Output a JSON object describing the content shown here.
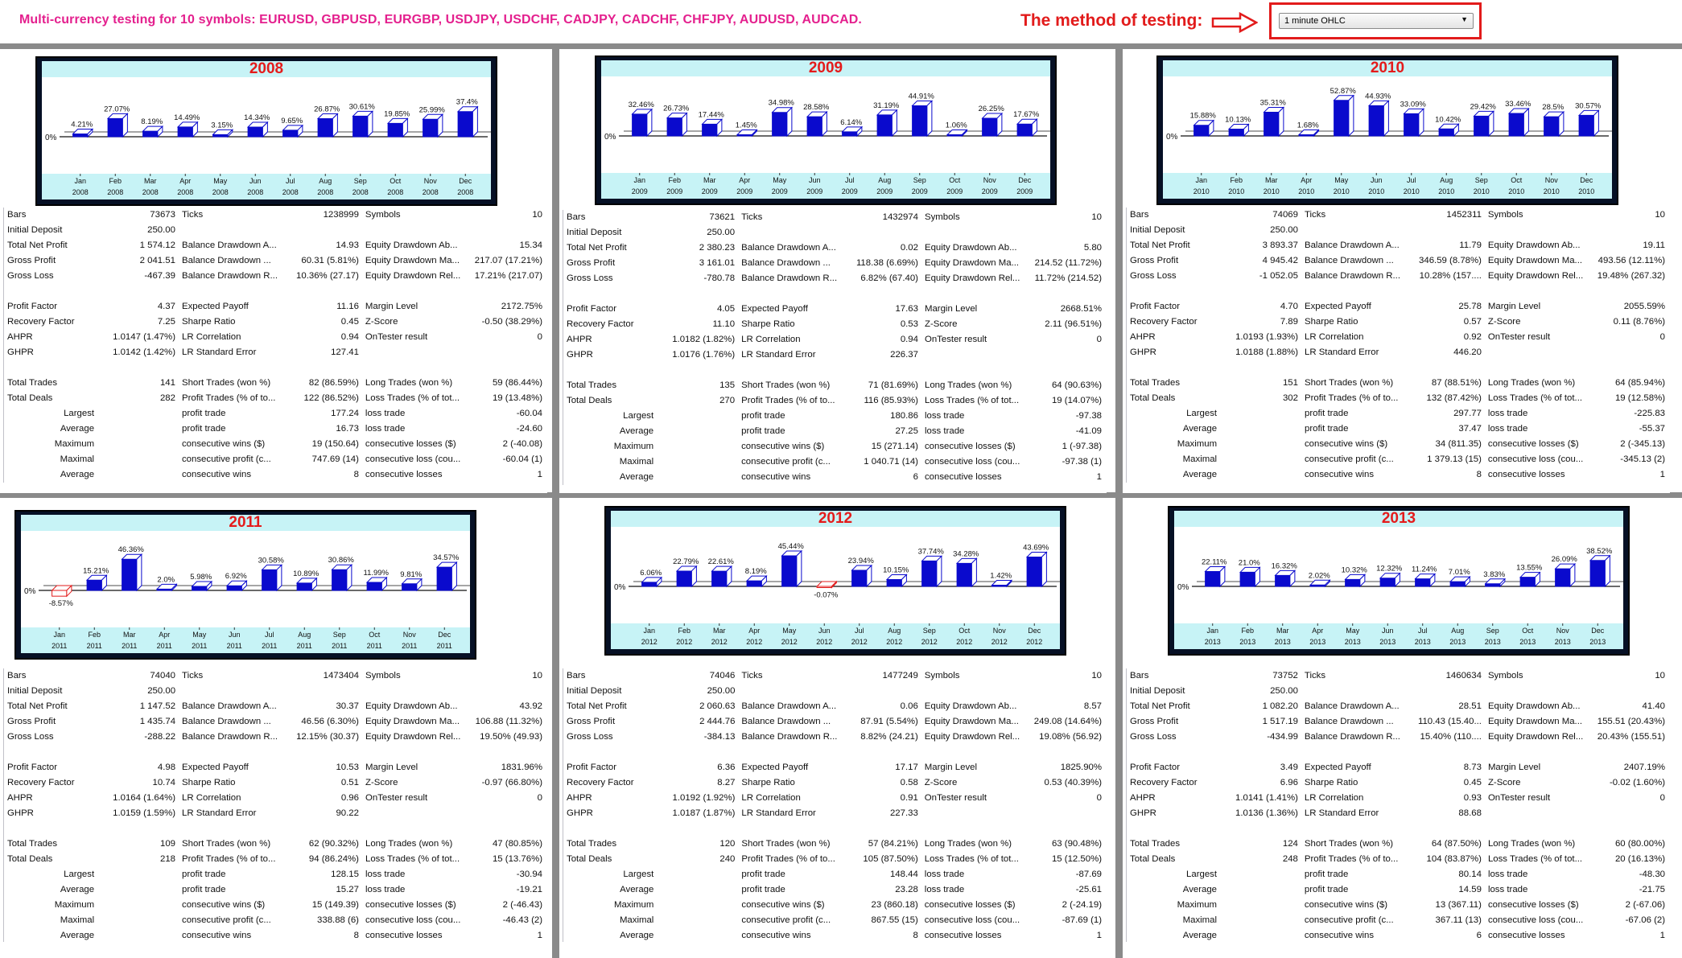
{
  "header": {
    "title": "Multi-currency testing for 10 symbols:  EURUSD, GBPUSD, EURGBP, USDJPY, USDCHF, CADJPY, CADCHF, CHFJPY, AUDUSD, AUDCAD.",
    "method_label": "The method of testing:",
    "method_value": "1 minute OHLC"
  },
  "colors": {
    "title": "#e4208e",
    "method": "#e21b1b",
    "bar_positive": "#0a0acd",
    "bar_negative": "#e21b1b",
    "chart_band": "#c7f3f6"
  },
  "months": [
    "Jan",
    "Feb",
    "Mar",
    "Apr",
    "May",
    "Jun",
    "Jul",
    "Aug",
    "Sep",
    "Oct",
    "Nov",
    "Dec"
  ],
  "zero_label": "0%",
  "row_labels": {
    "bars": "Bars",
    "ticks": "Ticks",
    "symbols": "Symbols",
    "initial_deposit": "Initial Deposit",
    "total_net_profit": "Total Net Profit",
    "balance_dd_abs": "Balance Drawdown A...",
    "equity_dd_abs": "Equity Drawdown Ab...",
    "gross_profit": "Gross Profit",
    "balance_dd_max": "Balance Drawdown ...",
    "equity_dd_max": "Equity Drawdown Ma...",
    "gross_loss": "Gross Loss",
    "balance_dd_rel": "Balance Drawdown R...",
    "equity_dd_rel": "Equity Drawdown Rel...",
    "profit_factor": "Profit Factor",
    "expected_payoff": "Expected Payoff",
    "margin_level": "Margin Level",
    "recovery_factor": "Recovery Factor",
    "sharpe_ratio": "Sharpe Ratio",
    "z_score": "Z-Score",
    "ahpr": "AHPR",
    "lr_correlation": "LR Correlation",
    "ontester": "OnTester result",
    "ghpr": "GHPR",
    "lr_std_error": "LR Standard Error",
    "total_trades": "Total Trades",
    "short_trades": "Short Trades (won %)",
    "long_trades": "Long Trades (won %)",
    "total_deals": "Total Deals",
    "profit_trades": "Profit Trades (% of to...",
    "loss_trades": "Loss Trades (% of tot...",
    "largest": "Largest",
    "average": "Average",
    "maximum": "Maximum",
    "maximal": "Maximal",
    "profit_trade": "profit trade",
    "loss_trade": "loss trade",
    "consecutive_wins_usd": "consecutive wins ($)",
    "consecutive_losses_usd": "consecutive losses ($)",
    "consecutive_profit": "consecutive profit (c...",
    "consecutive_loss": "consecutive loss (cou...",
    "consecutive_wins": "consecutive wins",
    "consecutive_losses": "consecutive losses"
  },
  "panels": [
    {
      "year": "2008",
      "monthly_labels": [
        "4.21%",
        "27.07%",
        "8.19%",
        "14.49%",
        "3.15%",
        "14.34%",
        "9.65%",
        "26.87%",
        "30.61%",
        "19.85%",
        "25.99%",
        "37.4%"
      ],
      "monthly_values": [
        4.21,
        27.07,
        8.19,
        14.49,
        3.15,
        14.34,
        9.65,
        26.87,
        30.61,
        19.85,
        25.99,
        37.4
      ],
      "stats": {
        "bars": "73673",
        "ticks": "1238999",
        "symbols": "10",
        "initial_deposit": "250.00",
        "total_net_profit": "1 574.12",
        "balance_dd_abs": "14.93",
        "equity_dd_abs": "15.34",
        "gross_profit": "2 041.51",
        "balance_dd_max": "60.31 (5.81%)",
        "equity_dd_max": "217.07 (17.21%)",
        "gross_loss": "-467.39",
        "balance_dd_rel": "10.36% (27.17)",
        "equity_dd_rel": "17.21% (217.07)",
        "profit_factor": "4.37",
        "expected_payoff": "11.16",
        "margin_level": "2172.75%",
        "recovery_factor": "7.25",
        "sharpe_ratio": "0.45",
        "z_score": "-0.50 (38.29%)",
        "ahpr": "1.0147 (1.47%)",
        "lr_correlation": "0.94",
        "ontester": "0",
        "ghpr": "1.0142 (1.42%)",
        "lr_std_error": "127.41",
        "total_trades": "141",
        "short_trades": "82 (86.59%)",
        "long_trades": "59 (86.44%)",
        "total_deals": "282",
        "profit_trades": "122 (86.52%)",
        "loss_trades": "19 (13.48%)",
        "largest_profit": "177.24",
        "largest_loss": "-60.04",
        "average_profit": "16.73",
        "average_loss": "-24.60",
        "max_cons_wins_usd": "19 (150.64)",
        "max_cons_losses_usd": "2 (-40.08)",
        "maximal_cons_profit": "747.69 (14)",
        "maximal_cons_loss": "-60.04 (1)",
        "avg_cons_wins": "8",
        "avg_cons_losses": "1"
      }
    },
    {
      "year": "2009",
      "monthly_labels": [
        "32.46%",
        "26.73%",
        "17.44%",
        "1.45%",
        "34.98%",
        "28.58%",
        "6.14%",
        "31.19%",
        "44.91%",
        "1.06%",
        "26.25%",
        "17.67%"
      ],
      "monthly_values": [
        32.46,
        26.73,
        17.44,
        1.45,
        34.98,
        28.58,
        6.14,
        31.19,
        44.91,
        1.06,
        26.25,
        17.67
      ],
      "stats": {
        "bars": "73621",
        "ticks": "1432974",
        "symbols": "10",
        "initial_deposit": "250.00",
        "total_net_profit": "2 380.23",
        "balance_dd_abs": "0.02",
        "equity_dd_abs": "5.80",
        "gross_profit": "3 161.01",
        "balance_dd_max": "118.38 (6.69%)",
        "equity_dd_max": "214.52 (11.72%)",
        "gross_loss": "-780.78",
        "balance_dd_rel": "6.82% (67.40)",
        "equity_dd_rel": "11.72% (214.52)",
        "profit_factor": "4.05",
        "expected_payoff": "17.63",
        "margin_level": "2668.51%",
        "recovery_factor": "11.10",
        "sharpe_ratio": "0.53",
        "z_score": "2.11 (96.51%)",
        "ahpr": "1.0182 (1.82%)",
        "lr_correlation": "0.94",
        "ontester": "0",
        "ghpr": "1.0176 (1.76%)",
        "lr_std_error": "226.37",
        "total_trades": "135",
        "short_trades": "71 (81.69%)",
        "long_trades": "64 (90.63%)",
        "total_deals": "270",
        "profit_trades": "116 (85.93%)",
        "loss_trades": "19 (14.07%)",
        "largest_profit": "180.86",
        "largest_loss": "-97.38",
        "average_profit": "27.25",
        "average_loss": "-41.09",
        "max_cons_wins_usd": "15 (271.14)",
        "max_cons_losses_usd": "1 (-97.38)",
        "maximal_cons_profit": "1 040.71 (14)",
        "maximal_cons_loss": "-97.38 (1)",
        "avg_cons_wins": "6",
        "avg_cons_losses": "1"
      }
    },
    {
      "year": "2010",
      "monthly_labels": [
        "15.88%",
        "10.13%",
        "35.31%",
        "1.68%",
        "52.87%",
        "44.93%",
        "33.09%",
        "10.42%",
        "29.42%",
        "33.46%",
        "28.5%",
        "30.57%"
      ],
      "monthly_values": [
        15.88,
        10.13,
        35.31,
        1.68,
        52.87,
        44.93,
        33.09,
        10.42,
        29.42,
        33.46,
        28.5,
        30.57
      ],
      "stats": {
        "bars": "74069",
        "ticks": "1452311",
        "symbols": "10",
        "initial_deposit": "250.00",
        "total_net_profit": "3 893.37",
        "balance_dd_abs": "11.79",
        "equity_dd_abs": "19.11",
        "gross_profit": "4 945.42",
        "balance_dd_max": "346.59 (8.78%)",
        "equity_dd_max": "493.56 (12.11%)",
        "gross_loss": "-1 052.05",
        "balance_dd_rel": "10.28% (157....",
        "equity_dd_rel": "19.48% (267.32)",
        "profit_factor": "4.70",
        "expected_payoff": "25.78",
        "margin_level": "2055.59%",
        "recovery_factor": "7.89",
        "sharpe_ratio": "0.57",
        "z_score": "0.11 (8.76%)",
        "ahpr": "1.0193 (1.93%)",
        "lr_correlation": "0.92",
        "ontester": "0",
        "ghpr": "1.0188 (1.88%)",
        "lr_std_error": "446.20",
        "total_trades": "151",
        "short_trades": "87 (88.51%)",
        "long_trades": "64 (85.94%)",
        "total_deals": "302",
        "profit_trades": "132 (87.42%)",
        "loss_trades": "19 (12.58%)",
        "largest_profit": "297.77",
        "largest_loss": "-225.83",
        "average_profit": "37.47",
        "average_loss": "-55.37",
        "max_cons_wins_usd": "34 (811.35)",
        "max_cons_losses_usd": "2 (-345.13)",
        "maximal_cons_profit": "1 379.13 (15)",
        "maximal_cons_loss": "-345.13 (2)",
        "avg_cons_wins": "8",
        "avg_cons_losses": "1"
      }
    },
    {
      "year": "2011",
      "monthly_labels": [
        "-8.57%",
        "15.21%",
        "46.36%",
        "2.0%",
        "5.98%",
        "6.92%",
        "30.58%",
        "10.89%",
        "30.86%",
        "11.99%",
        "9.81%",
        "34.57%"
      ],
      "monthly_values": [
        -8.57,
        15.21,
        46.36,
        2.0,
        5.98,
        6.92,
        30.58,
        10.89,
        30.86,
        11.99,
        9.81,
        34.57
      ],
      "stats": {
        "bars": "74040",
        "ticks": "1473404",
        "symbols": "10",
        "initial_deposit": "250.00",
        "total_net_profit": "1 147.52",
        "balance_dd_abs": "30.37",
        "equity_dd_abs": "43.92",
        "gross_profit": "1 435.74",
        "balance_dd_max": "46.56 (6.30%)",
        "equity_dd_max": "106.88 (11.32%)",
        "gross_loss": "-288.22",
        "balance_dd_rel": "12.15% (30.37)",
        "equity_dd_rel": "19.50% (49.93)",
        "profit_factor": "4.98",
        "expected_payoff": "10.53",
        "margin_level": "1831.96%",
        "recovery_factor": "10.74",
        "sharpe_ratio": "0.51",
        "z_score": "-0.97 (66.80%)",
        "ahpr": "1.0164 (1.64%)",
        "lr_correlation": "0.96",
        "ontester": "0",
        "ghpr": "1.0159 (1.59%)",
        "lr_std_error": "90.22",
        "total_trades": "109",
        "short_trades": "62 (90.32%)",
        "long_trades": "47 (80.85%)",
        "total_deals": "218",
        "profit_trades": "94 (86.24%)",
        "loss_trades": "15 (13.76%)",
        "largest_profit": "128.15",
        "largest_loss": "-30.94",
        "average_profit": "15.27",
        "average_loss": "-19.21",
        "max_cons_wins_usd": "15 (149.39)",
        "max_cons_losses_usd": "2 (-46.43)",
        "maximal_cons_profit": "338.88 (6)",
        "maximal_cons_loss": "-46.43 (2)",
        "avg_cons_wins": "8",
        "avg_cons_losses": "1"
      }
    },
    {
      "year": "2012",
      "monthly_labels": [
        "6.06%",
        "22.79%",
        "22.61%",
        "8.19%",
        "45.44%",
        "-0.07%",
        "23.94%",
        "10.15%",
        "37.74%",
        "34.28%",
        "1.42%",
        "43.69%"
      ],
      "monthly_values": [
        6.06,
        22.79,
        22.61,
        8.19,
        45.44,
        -0.07,
        23.94,
        10.15,
        37.74,
        34.28,
        1.42,
        43.69
      ],
      "stats": {
        "bars": "74046",
        "ticks": "1477249",
        "symbols": "10",
        "initial_deposit": "250.00",
        "total_net_profit": "2 060.63",
        "balance_dd_abs": "0.06",
        "equity_dd_abs": "8.57",
        "gross_profit": "2 444.76",
        "balance_dd_max": "87.91 (5.54%)",
        "equity_dd_max": "249.08 (14.64%)",
        "gross_loss": "-384.13",
        "balance_dd_rel": "8.82% (24.21)",
        "equity_dd_rel": "19.08% (56.92)",
        "profit_factor": "6.36",
        "expected_payoff": "17.17",
        "margin_level": "1825.90%",
        "recovery_factor": "8.27",
        "sharpe_ratio": "0.58",
        "z_score": "0.53 (40.39%)",
        "ahpr": "1.0192 (1.92%)",
        "lr_correlation": "0.91",
        "ontester": "0",
        "ghpr": "1.0187 (1.87%)",
        "lr_std_error": "227.33",
        "total_trades": "120",
        "short_trades": "57 (84.21%)",
        "long_trades": "63 (90.48%)",
        "total_deals": "240",
        "profit_trades": "105 (87.50%)",
        "loss_trades": "15 (12.50%)",
        "largest_profit": "148.44",
        "largest_loss": "-87.69",
        "average_profit": "23.28",
        "average_loss": "-25.61",
        "max_cons_wins_usd": "23 (860.18)",
        "max_cons_losses_usd": "2 (-24.19)",
        "maximal_cons_profit": "867.55 (15)",
        "maximal_cons_loss": "-87.69 (1)",
        "avg_cons_wins": "8",
        "avg_cons_losses": "1"
      }
    },
    {
      "year": "2013",
      "monthly_labels": [
        "22.11%",
        "21.0%",
        "16.32%",
        "2.02%",
        "10.32%",
        "12.32%",
        "11.24%",
        "7.01%",
        "3.83%",
        "13.55%",
        "26.09%",
        "38.52%"
      ],
      "monthly_values": [
        22.11,
        21.0,
        16.32,
        2.02,
        10.32,
        12.32,
        11.24,
        7.01,
        3.83,
        13.55,
        26.09,
        38.52
      ],
      "stats": {
        "bars": "73752",
        "ticks": "1460634",
        "symbols": "10",
        "initial_deposit": "250.00",
        "total_net_profit": "1 082.20",
        "balance_dd_abs": "28.51",
        "equity_dd_abs": "41.40",
        "gross_profit": "1 517.19",
        "balance_dd_max": "110.43 (15.40...",
        "equity_dd_max": "155.51 (20.43%)",
        "gross_loss": "-434.99",
        "balance_dd_rel": "15.40% (110....",
        "equity_dd_rel": "20.43% (155.51)",
        "profit_factor": "3.49",
        "expected_payoff": "8.73",
        "margin_level": "2407.19%",
        "recovery_factor": "6.96",
        "sharpe_ratio": "0.45",
        "z_score": "-0.02 (1.60%)",
        "ahpr": "1.0141 (1.41%)",
        "lr_correlation": "0.93",
        "ontester": "0",
        "ghpr": "1.0136 (1.36%)",
        "lr_std_error": "88.68",
        "total_trades": "124",
        "short_trades": "64 (87.50%)",
        "long_trades": "60 (80.00%)",
        "total_deals": "248",
        "profit_trades": "104 (83.87%)",
        "loss_trades": "20 (16.13%)",
        "largest_profit": "80.14",
        "largest_loss": "-48.30",
        "average_profit": "14.59",
        "average_loss": "-21.75",
        "max_cons_wins_usd": "13 (367.11)",
        "max_cons_losses_usd": "2 (-67.06)",
        "maximal_cons_profit": "367.11 (13)",
        "maximal_cons_loss": "-67.06 (2)",
        "avg_cons_wins": "6",
        "avg_cons_losses": "1"
      }
    }
  ]
}
